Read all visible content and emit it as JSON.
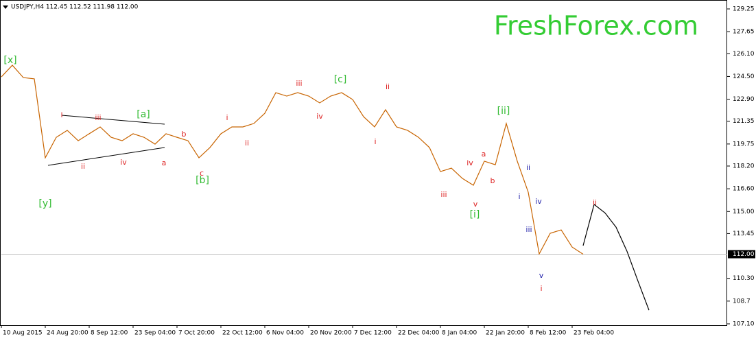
{
  "chart_data": {
    "type": "line",
    "header": "USDJPY,H4  112.45 112.52 111.98 112.00",
    "watermark": "FreshForex.com",
    "categories": [
      "10 Aug 2015",
      null,
      null,
      null,
      "24 Aug 20:00",
      null,
      null,
      null,
      "8 Sep 12:00",
      null,
      null,
      null,
      "23 Sep 04:00",
      null,
      null,
      null,
      "7 Oct 20:00",
      null,
      null,
      null,
      "22 Oct 12:00",
      null,
      null,
      null,
      "6 Nov 04:00",
      null,
      null,
      null,
      "20 Nov 20:00",
      null,
      null,
      null,
      "7 Dec 12:00",
      null,
      null,
      null,
      "22 Dec 04:00",
      null,
      null,
      null,
      "8 Jan 04:00",
      null,
      null,
      null,
      "22 Jan 20:00",
      null,
      null,
      null,
      "8 Feb 12:00",
      null,
      null,
      null,
      "23 Feb 04:00",
      null,
      null,
      null,
      null,
      null,
      null,
      null,
      null,
      null,
      null,
      null,
      null,
      null
    ],
    "series": [
      {
        "color": "#c86400",
        "values": [
          124.47,
          125.29,
          124.42,
          124.33,
          118.78,
          120.22,
          120.71,
          119.98,
          120.47,
          120.95,
          120.22,
          119.98,
          120.47,
          120.22,
          119.74,
          120.47,
          120.22,
          119.98,
          118.78,
          119.5,
          120.47,
          120.95,
          120.95,
          121.19,
          121.91,
          123.36,
          123.12,
          123.36,
          123.12,
          122.64,
          123.12,
          123.36,
          122.88,
          121.67,
          120.95,
          122.16,
          120.95,
          120.71,
          120.22,
          119.5,
          117.81,
          118.05,
          117.33,
          116.85,
          118.54,
          118.29,
          121.19,
          118.54,
          116.36,
          112.02,
          113.47,
          113.71,
          112.5,
          112.0,
          null,
          null,
          null,
          null,
          null,
          null,
          null,
          null,
          null,
          null,
          null,
          null
        ]
      },
      {
        "color": "#000000",
        "values": [
          null,
          null,
          null,
          null,
          null,
          null,
          null,
          null,
          null,
          null,
          null,
          null,
          null,
          null,
          null,
          null,
          null,
          null,
          null,
          null,
          null,
          null,
          null,
          null,
          null,
          null,
          null,
          null,
          null,
          null,
          null,
          null,
          null,
          null,
          null,
          null,
          null,
          null,
          null,
          null,
          null,
          null,
          null,
          null,
          null,
          null,
          null,
          null,
          null,
          null,
          null,
          null,
          null,
          112.6,
          115.5,
          114.9,
          113.9,
          112.2,
          110.1,
          108.06,
          null,
          null,
          null,
          null,
          null,
          null
        ]
      }
    ],
    "ylim": [
      107.1,
      129.25
    ],
    "yticks": [
      {
        "value": 107.1,
        "label": "107.10"
      },
      108.7,
      {
        "value": 110.3,
        "label": "110.30"
      },
      113.45,
      {
        "value": 115,
        "label": "115.00"
      },
      {
        "value": 116.6,
        "label": "116.60"
      },
      {
        "value": 118.2,
        "label": "118.20"
      },
      119.75,
      121.35,
      {
        "value": 122.9,
        "label": "122.90"
      },
      {
        "value": 124.5,
        "label": "124.50"
      },
      {
        "value": 126.1,
        "label": "126.10"
      },
      127.65,
      129.25
    ],
    "current_price": {
      "value": 112,
      "label": "112.00"
    },
    "annotations": [
      {
        "text": "[x]",
        "color": "#33bb33"
      },
      {
        "text": "[y]",
        "color": "#33bb33"
      },
      {
        "text": "i",
        "color": "#dd2222"
      },
      {
        "text": "ii",
        "color": "#dd2222"
      },
      {
        "text": "iii",
        "color": "#dd2222"
      },
      {
        "text": "iv",
        "color": "#dd2222"
      },
      {
        "text": "[a]",
        "color": "#33bb33"
      },
      {
        "text": "a",
        "color": "#dd2222"
      },
      {
        "text": "b",
        "color": "#dd2222"
      },
      {
        "text": "c",
        "color": "#dd2222"
      },
      {
        "text": "[b]",
        "color": "#33bb33"
      },
      {
        "text": "i",
        "color": "#dd2222"
      },
      {
        "text": "ii",
        "color": "#dd2222"
      },
      {
        "text": "iii",
        "color": "#dd2222"
      },
      {
        "text": "iv",
        "color": "#dd2222"
      },
      {
        "text": "[c]",
        "color": "#33bb33"
      },
      {
        "text": "ii",
        "color": "#dd2222"
      },
      {
        "text": "i",
        "color": "#dd2222"
      },
      {
        "text": "iii",
        "color": "#dd2222"
      },
      {
        "text": "iv",
        "color": "#dd2222"
      },
      {
        "text": "a",
        "color": "#dd2222"
      },
      {
        "text": "b",
        "color": "#dd2222"
      },
      {
        "text": "v",
        "color": "#dd2222"
      },
      {
        "text": "[i]",
        "color": "#33bb33"
      },
      {
        "text": "[ii]",
        "color": "#33bb33"
      },
      {
        "text": "ii",
        "color": "#2222aa"
      },
      {
        "text": "i",
        "color": "#2222aa"
      },
      {
        "text": "iv",
        "color": "#2222aa"
      },
      {
        "text": "iii",
        "color": "#2222aa"
      },
      {
        "text": "v",
        "color": "#2222aa"
      },
      {
        "text": "i",
        "color": "#dd2222"
      },
      {
        "text": "ii",
        "color": "#dd2222"
      }
    ]
  }
}
